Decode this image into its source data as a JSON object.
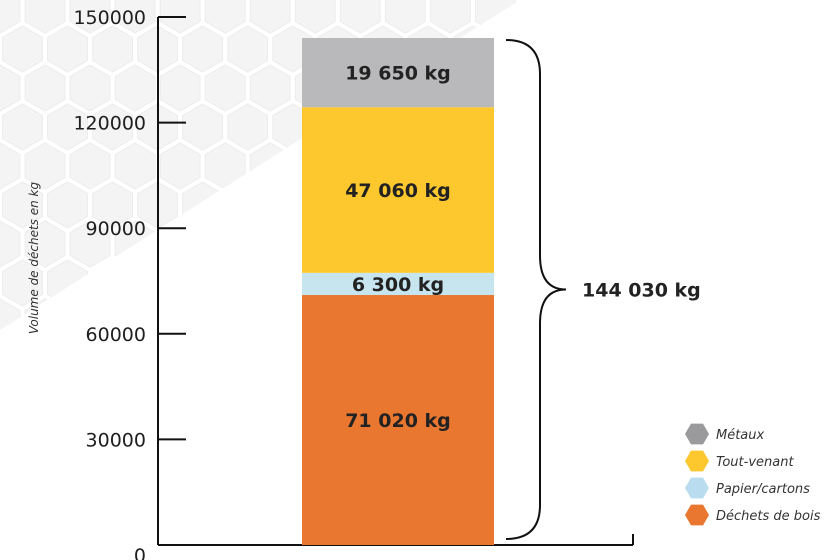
{
  "chart_data": {
    "type": "bar",
    "stacked": true,
    "ylabel": "Volume de déchets en kg",
    "ylim": [
      0,
      150000
    ],
    "yticks": [
      0,
      30000,
      60000,
      90000,
      120000,
      150000
    ],
    "legend_position": "bottom-right",
    "grid": false,
    "series": [
      {
        "name": "Déchets de bois",
        "value": 71020,
        "label": "71 020 kg",
        "color": "#E97730"
      },
      {
        "name": "Papier/cartons",
        "value": 6300,
        "label": "6 300 kg",
        "color": "#C7E5EE"
      },
      {
        "name": "Tout-venant",
        "value": 47060,
        "label": "47 060 kg",
        "color": "#FDC72E"
      },
      {
        "name": "Métaux",
        "value": 19650,
        "label": "19 650 kg",
        "color": "#B9B9BB"
      }
    ],
    "legend": [
      {
        "name": "Métaux",
        "color": "#9A9A9C"
      },
      {
        "name": "Tout-venant",
        "color": "#FDC72E"
      },
      {
        "name": "Papier/cartons",
        "color": "#B9DCEE"
      },
      {
        "name": "Déchets de bois",
        "color": "#E97730"
      }
    ],
    "total": {
      "value": 144030,
      "label": "144 030 kg"
    }
  }
}
